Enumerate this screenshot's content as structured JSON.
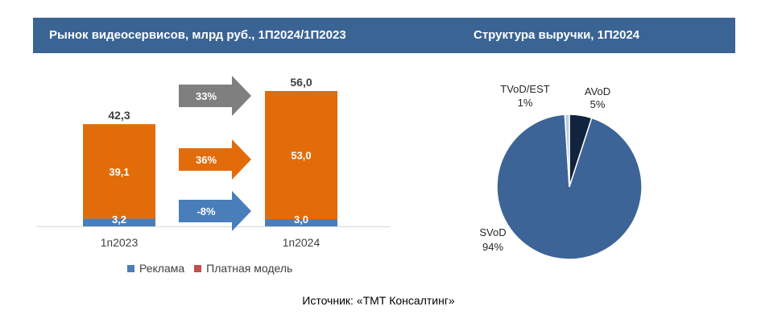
{
  "header": {
    "left_title": "Рынок видеосервисов, млрд руб., 1П2024/1П2023",
    "right_title": "Структура выручки, 1П2024"
  },
  "source": "Источник: «ТМТ Консалтинг»",
  "colors": {
    "header": "#3a6494",
    "advertising": "#4a7ebb",
    "paid": "#e36c0a",
    "arrow_total": "#7f7f7f",
    "arrow_paid": "#e36c0a",
    "arrow_ads": "#4a7ebb",
    "svod": "#3d6496",
    "avod": "#12233d",
    "tvod": "#b8cce4"
  },
  "chart_data": [
    {
      "type": "bar",
      "stacked": true,
      "title": "Рынок видеосервисов, млрд руб., 1П2024/1П2023",
      "categories": [
        "1п2023",
        "1п2024"
      ],
      "series": [
        {
          "name": "Реклама",
          "values": [
            3.2,
            3.0
          ],
          "labels": [
            "3,2",
            "3,0"
          ]
        },
        {
          "name": "Платная модель",
          "values": [
            39.1,
            53.0
          ],
          "labels": [
            "39,1",
            "53,0"
          ]
        }
      ],
      "totals": [
        42.3,
        56.0
      ],
      "total_labels": [
        "42,3",
        "56,0"
      ],
      "growth_annotations": [
        {
          "label": "33%",
          "refers_to": "total"
        },
        {
          "label": "36%",
          "refers_to": "Платная модель"
        },
        {
          "label": "-8%",
          "refers_to": "Реклама"
        }
      ],
      "legend": [
        "Реклама",
        "Платная модель"
      ],
      "legend_position": "bottom"
    },
    {
      "type": "pie",
      "title": "Структура выручки, 1П2024",
      "slices": [
        {
          "name": "SVoD",
          "value": 94,
          "label": "94%"
        },
        {
          "name": "AVoD",
          "value": 5,
          "label": "5%"
        },
        {
          "name": "TVoD/EST",
          "value": 1,
          "label": "1%"
        }
      ]
    }
  ]
}
